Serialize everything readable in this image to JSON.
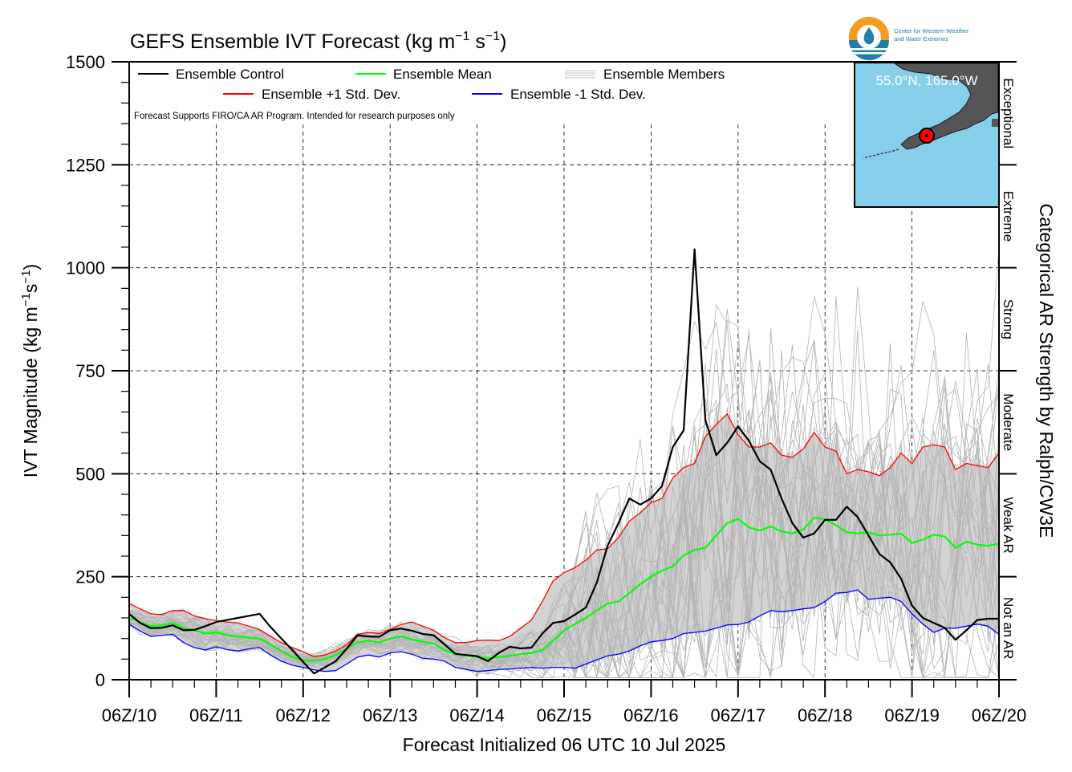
{
  "chart_data": {
    "type": "line",
    "title": "GEFS Ensemble IVT Forecast (kg m",
    "title_unit_exp1": "−1",
    "title_unit_mid": " s",
    "title_unit_exp2": "−1",
    "title_close": ")",
    "xlabel": "Forecast Initialized 06 UTC 10 Jul 2025",
    "ylabel": "IVT Magnitude (kg m",
    "ylabel_exp1": "−1",
    "ylabel_mid": "s",
    "ylabel_exp2": "−1",
    "ylabel_close": ")",
    "right_label": "Categorical AR Strength by Ralph/CW3E",
    "xlim": [
      0,
      240
    ],
    "ylim": [
      0,
      1500
    ],
    "grid": true,
    "legend_position": "top-left",
    "x_tick_labels": [
      "06Z/10",
      "06Z/11",
      "06Z/12",
      "06Z/13",
      "06Z/14",
      "06Z/15",
      "06Z/16",
      "06Z/17",
      "06Z/18",
      "06Z/19",
      "06Z/20"
    ],
    "y_ticks": [
      0,
      250,
      500,
      750,
      1000,
      1250,
      1500
    ],
    "categories": [
      {
        "label": "Not an AR",
        "range": [
          0,
          250
        ]
      },
      {
        "label": "Weak AR",
        "range": [
          250,
          500
        ]
      },
      {
        "label": "Moderate",
        "range": [
          500,
          750
        ]
      },
      {
        "label": "Strong",
        "range": [
          750,
          1000
        ]
      },
      {
        "label": "Extreme",
        "range": [
          1000,
          1250
        ]
      },
      {
        "label": "Exceptional",
        "range": [
          1250,
          1500
        ]
      }
    ],
    "note": "Forecast Supports FIRO/CA AR Program. Intended for research purposes only",
    "series": [
      {
        "name": "Ensemble Control",
        "color": "#000000",
        "x": [
          0,
          3,
          6,
          9,
          12,
          15,
          18,
          21,
          24,
          27,
          30,
          33,
          36,
          39,
          42,
          45,
          48,
          51,
          54,
          57,
          60,
          63,
          66,
          69,
          72,
          75,
          78,
          81,
          84,
          87,
          90,
          93,
          96,
          99,
          102,
          105,
          108,
          111,
          114,
          117,
          120,
          123,
          126,
          129,
          132,
          135,
          138,
          141,
          144,
          147,
          150,
          153,
          156,
          159,
          162,
          165,
          168,
          171,
          174,
          177,
          180,
          183,
          186,
          189,
          192,
          195,
          198,
          201,
          204,
          207,
          210,
          213,
          216,
          219,
          222,
          225,
          228,
          231,
          234,
          237,
          240
        ],
        "y": [
          160,
          138,
          125,
          126,
          132,
          120,
          121,
          130,
          140,
          145,
          150,
          155,
          160,
          128,
          100,
          72,
          43,
          15,
          30,
          45,
          75,
          108,
          105,
          104,
          120,
          124,
          119,
          111,
          108,
          86,
          63,
          60,
          57,
          45,
          65,
          80,
          76,
          78,
          112,
          138,
          142,
          158,
          175,
          235,
          325,
          380,
          440,
          425,
          440,
          470,
          565,
          605,
          1045,
          630,
          545,
          575,
          615,
          580,
          530,
          510,
          440,
          380,
          345,
          355,
          388,
          388,
          420,
          395,
          350,
          305,
          285,
          245,
          180,
          150,
          138,
          126,
          97,
          120,
          145,
          148,
          148
        ]
      },
      {
        "name": "Ensemble Mean",
        "color": "#00ff00",
        "x": [
          0,
          3,
          6,
          9,
          12,
          15,
          18,
          21,
          24,
          27,
          30,
          33,
          36,
          39,
          42,
          45,
          48,
          51,
          54,
          57,
          60,
          63,
          66,
          69,
          72,
          75,
          78,
          81,
          84,
          87,
          90,
          93,
          96,
          99,
          102,
          105,
          108,
          111,
          114,
          117,
          120,
          123,
          126,
          129,
          132,
          135,
          138,
          141,
          144,
          147,
          150,
          153,
          156,
          159,
          162,
          165,
          168,
          171,
          174,
          177,
          180,
          183,
          186,
          189,
          192,
          195,
          198,
          201,
          204,
          207,
          210,
          213,
          216,
          219,
          222,
          225,
          228,
          231,
          234,
          237,
          240
        ],
        "y": [
          150,
          140,
          130,
          132,
          138,
          125,
          120,
          112,
          115,
          108,
          105,
          102,
          100,
          85,
          70,
          55,
          47,
          46,
          50,
          60,
          75,
          90,
          95,
          90,
          100,
          105,
          98,
          92,
          88,
          72,
          62,
          58,
          56,
          52,
          55,
          58,
          62,
          65,
          72,
          95,
          120,
          135,
          150,
          168,
          185,
          190,
          210,
          232,
          250,
          265,
          275,
          302,
          315,
          320,
          350,
          380,
          390,
          370,
          362,
          372,
          360,
          355,
          365,
          393,
          390,
          375,
          358,
          355,
          358,
          350,
          352,
          355,
          332,
          340,
          352,
          348,
          320,
          335,
          328,
          325,
          330
        ]
      },
      {
        "name": "Ensemble +1 Std. Dev.",
        "color": "#ff0000",
        "x": [
          0,
          3,
          6,
          9,
          12,
          15,
          18,
          21,
          24,
          27,
          30,
          33,
          36,
          39,
          42,
          45,
          48,
          51,
          54,
          57,
          60,
          63,
          66,
          69,
          72,
          75,
          78,
          81,
          84,
          87,
          90,
          93,
          96,
          99,
          102,
          105,
          108,
          111,
          114,
          117,
          120,
          123,
          126,
          129,
          132,
          135,
          138,
          141,
          144,
          147,
          150,
          153,
          156,
          159,
          162,
          165,
          168,
          171,
          174,
          177,
          180,
          183,
          186,
          189,
          192,
          195,
          198,
          201,
          204,
          207,
          210,
          213,
          216,
          219,
          222,
          225,
          228,
          231,
          234,
          237,
          240
        ],
        "y": [
          185,
          172,
          160,
          158,
          168,
          168,
          155,
          148,
          144,
          140,
          138,
          130,
          122,
          105,
          90,
          78,
          68,
          56,
          60,
          70,
          85,
          110,
          115,
          112,
          122,
          134,
          140,
          130,
          120,
          102,
          90,
          90,
          95,
          96,
          95,
          105,
          125,
          145,
          190,
          240,
          260,
          272,
          290,
          315,
          318,
          345,
          385,
          405,
          430,
          440,
          490,
          515,
          525,
          590,
          620,
          645,
          595,
          565,
          565,
          575,
          545,
          540,
          560,
          600,
          565,
          555,
          500,
          510,
          505,
          495,
          515,
          550,
          525,
          565,
          570,
          565,
          510,
          525,
          520,
          515,
          550
        ]
      },
      {
        "name": "Ensemble -1 Std. Dev.",
        "color": "#0000ff",
        "x": [
          0,
          3,
          6,
          9,
          12,
          15,
          18,
          21,
          24,
          27,
          30,
          33,
          36,
          39,
          42,
          45,
          48,
          51,
          54,
          57,
          60,
          63,
          66,
          69,
          72,
          75,
          78,
          81,
          84,
          87,
          90,
          93,
          96,
          99,
          102,
          105,
          108,
          111,
          114,
          117,
          120,
          123,
          126,
          129,
          132,
          135,
          138,
          141,
          144,
          147,
          150,
          153,
          156,
          159,
          162,
          165,
          168,
          171,
          174,
          177,
          180,
          183,
          186,
          189,
          192,
          195,
          198,
          201,
          204,
          207,
          210,
          213,
          216,
          219,
          222,
          225,
          228,
          231,
          234,
          237,
          240
        ],
        "y": [
          135,
          118,
          105,
          108,
          110,
          90,
          78,
          72,
          80,
          73,
          70,
          75,
          78,
          60,
          45,
          35,
          30,
          24,
          20,
          22,
          38,
          55,
          60,
          55,
          65,
          68,
          62,
          52,
          50,
          45,
          30,
          25,
          20,
          22,
          25,
          26,
          28,
          30,
          28,
          30,
          30,
          28,
          38,
          48,
          58,
          62,
          70,
          82,
          92,
          95,
          100,
          112,
          115,
          118,
          125,
          133,
          134,
          140,
          155,
          168,
          165,
          168,
          172,
          175,
          190,
          210,
          212,
          218,
          195,
          198,
          200,
          190,
          160,
          135,
          115,
          125,
          125,
          130,
          135,
          130,
          110
        ]
      }
    ]
  }
}
